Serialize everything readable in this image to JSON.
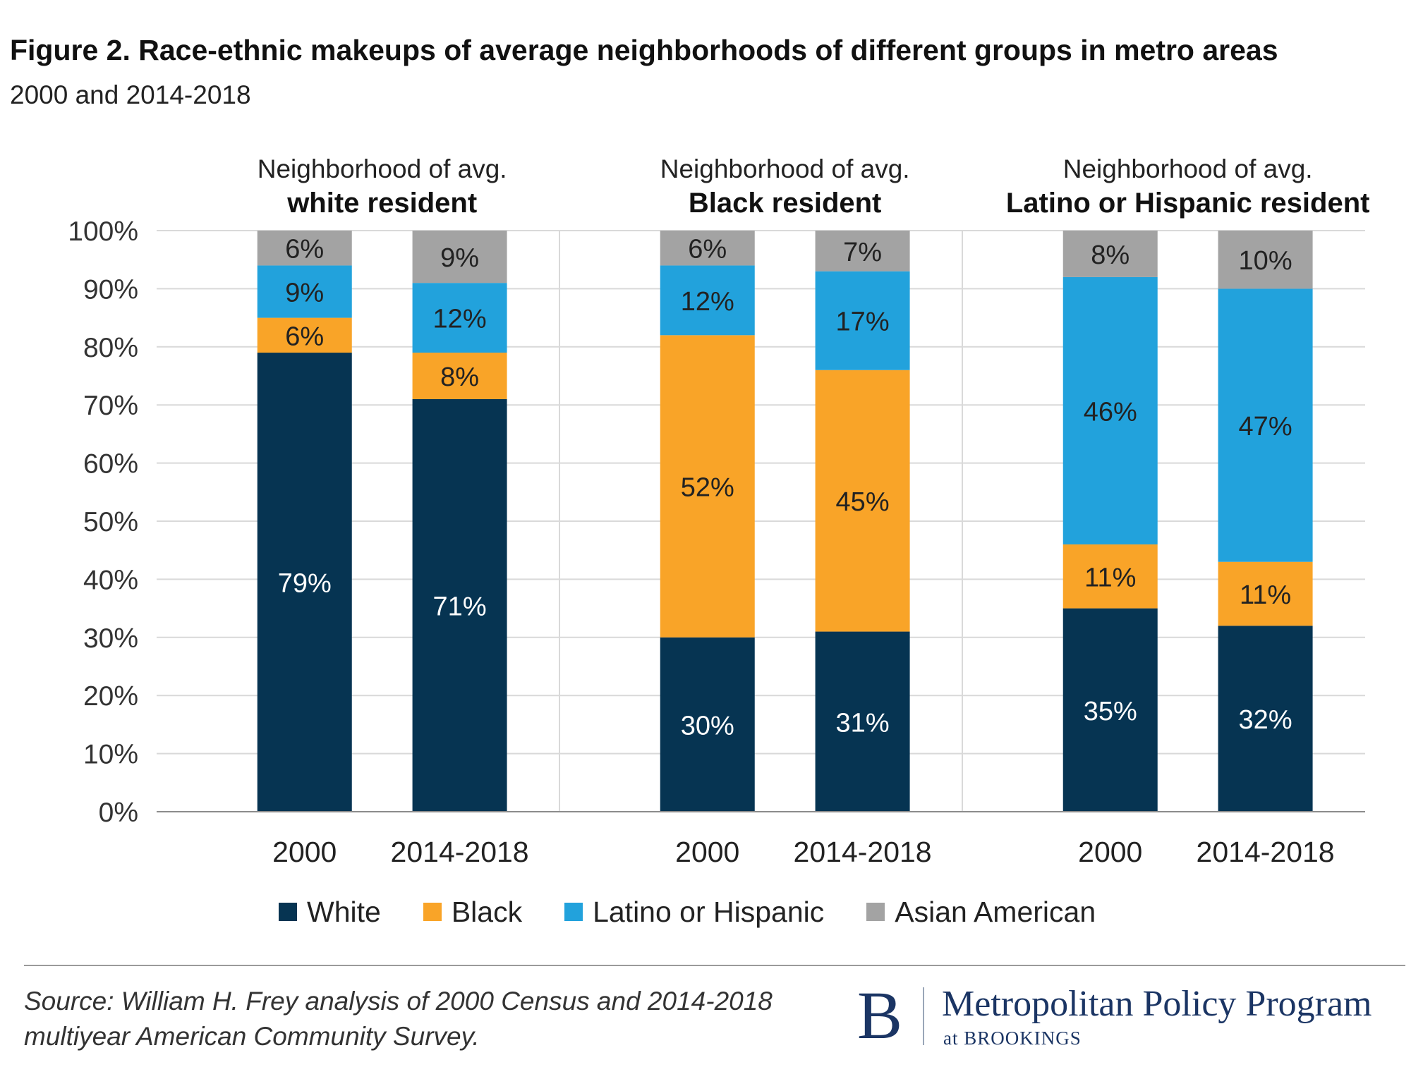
{
  "title": "Figure 2. Race-ethnic makeups of average neighborhoods of different groups in metro areas",
  "subtitle": "2000 and 2014-2018",
  "chart_data": {
    "type": "bar",
    "stacked": true,
    "ylim": [
      0,
      100
    ],
    "y_ticks": [
      "0%",
      "10%",
      "20%",
      "30%",
      "40%",
      "50%",
      "60%",
      "70%",
      "80%",
      "90%",
      "100%"
    ],
    "grid": true,
    "legend_position": "bottom",
    "panels": [
      {
        "label_line1": "Neighborhood of avg.",
        "label_line2": "white resident",
        "categories": [
          "2000",
          "2014-2018"
        ],
        "series": [
          {
            "name": "White",
            "values": [
              79,
              71
            ],
            "labels": [
              "79%",
              "71%"
            ]
          },
          {
            "name": "Black",
            "values": [
              6,
              8
            ],
            "labels": [
              "6%",
              "8%"
            ]
          },
          {
            "name": "Latino or Hispanic",
            "values": [
              9,
              12
            ],
            "labels": [
              "9%",
              "12%"
            ]
          },
          {
            "name": "Asian American",
            "values": [
              6,
              9
            ],
            "labels": [
              "6%",
              "9%"
            ]
          }
        ]
      },
      {
        "label_line1": "Neighborhood of avg.",
        "label_line2": "Black resident",
        "categories": [
          "2000",
          "2014-2018"
        ],
        "series": [
          {
            "name": "White",
            "values": [
              30,
              31
            ],
            "labels": [
              "30%",
              "31%"
            ]
          },
          {
            "name": "Black",
            "values": [
              52,
              45
            ],
            "labels": [
              "52%",
              "45%"
            ]
          },
          {
            "name": "Latino or Hispanic",
            "values": [
              12,
              17
            ],
            "labels": [
              "12%",
              "17%"
            ]
          },
          {
            "name": "Asian American",
            "values": [
              6,
              7
            ],
            "labels": [
              "6%",
              "7%"
            ]
          }
        ]
      },
      {
        "label_line1": "Neighborhood of avg.",
        "label_line2": "Latino or Hispanic resident",
        "categories": [
          "2000",
          "2014-2018"
        ],
        "series": [
          {
            "name": "White",
            "values": [
              35,
              32
            ],
            "labels": [
              "35%",
              "32%"
            ]
          },
          {
            "name": "Black",
            "values": [
              11,
              11
            ],
            "labels": [
              "11%",
              "11%"
            ]
          },
          {
            "name": "Latino or Hispanic",
            "values": [
              46,
              47
            ],
            "labels": [
              "46%",
              "47%"
            ]
          },
          {
            "name": "Asian American",
            "values": [
              8,
              10
            ],
            "labels": [
              "8%",
              "10%"
            ]
          }
        ]
      }
    ],
    "colors": {
      "White": "#063452",
      "Black": "#f9a428",
      "Latino or Hispanic": "#22a2dc",
      "Asian American": "#a3a3a3"
    },
    "label_colors": {
      "White": "#ffffff",
      "Black": "#222222",
      "Latino or Hispanic": "#222222",
      "Asian American": "#222222"
    }
  },
  "legend": [
    {
      "label": "White",
      "color": "#063452"
    },
    {
      "label": "Black",
      "color": "#f9a428"
    },
    {
      "label": "Latino or Hispanic",
      "color": "#22a2dc"
    },
    {
      "label": "Asian American",
      "color": "#a3a3a3"
    }
  ],
  "source": "Source: William H. Frey analysis of 2000 Census and 2014-2018 multiyear American Community Survey.",
  "logo": {
    "letter": "B",
    "name": "Metropolitan Policy Program",
    "sub": "at BROOKINGS"
  }
}
